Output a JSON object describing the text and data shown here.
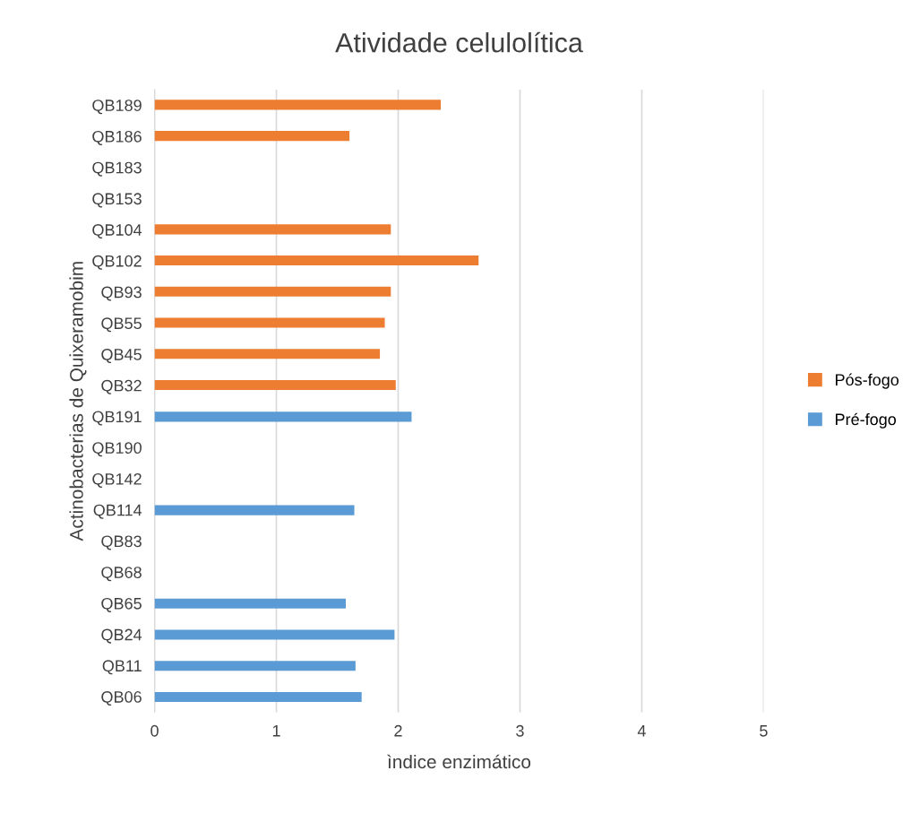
{
  "chart_data": {
    "type": "bar",
    "orientation": "horizontal",
    "title": "Atividade celulolítica",
    "xlabel": "ìndice enzimático",
    "ylabel": "Actinobacterias de Quixeramobim",
    "categories": [
      "QB189",
      "QB186",
      "QB183",
      "QB153",
      "QB104",
      "QB102",
      "QB93",
      "QB55",
      "QB45",
      "QB32",
      "QB191",
      "QB190",
      "QB142",
      "QB114",
      "QB83",
      "QB68",
      "QB65",
      "QB24",
      "QB11",
      "QB06"
    ],
    "series": [
      {
        "name": "Pré-fogo",
        "color": "#5b9bd5",
        "values": [
          null,
          null,
          null,
          null,
          null,
          null,
          null,
          null,
          null,
          null,
          2.11,
          null,
          null,
          1.64,
          null,
          null,
          1.57,
          1.97,
          1.65,
          1.7
        ]
      },
      {
        "name": "Pós-fogo",
        "color": "#ed7d31",
        "values": [
          2.35,
          1.6,
          null,
          null,
          1.94,
          2.66,
          1.94,
          1.89,
          1.85,
          1.98,
          null,
          null,
          null,
          null,
          null,
          null,
          null,
          null,
          null,
          null
        ]
      }
    ],
    "xlim": [
      0,
      5
    ],
    "xticks": [
      0,
      1,
      2,
      3,
      4,
      5
    ],
    "grid": "x",
    "legend": "right"
  }
}
